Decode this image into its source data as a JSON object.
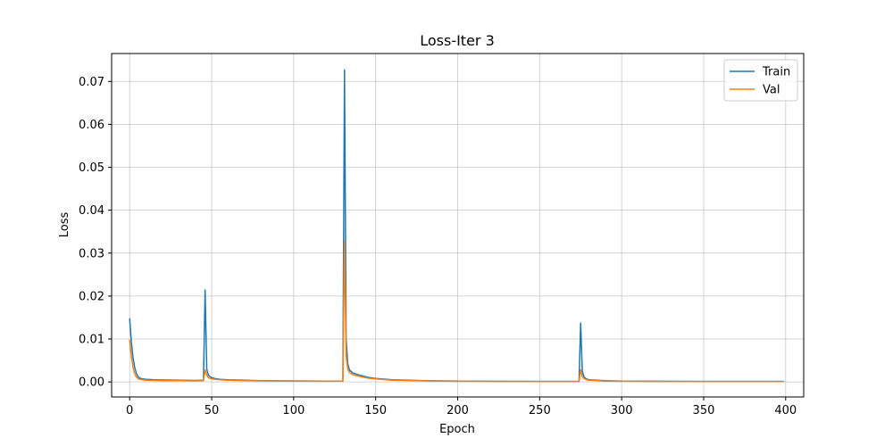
{
  "chart_data": {
    "type": "line",
    "title": "Loss-Iter 3",
    "xlabel": "Epoch",
    "ylabel": "Loss",
    "xlim": [
      -11,
      411
    ],
    "ylim": [
      -0.0035,
      0.0765
    ],
    "xticks": [
      0,
      50,
      100,
      150,
      200,
      250,
      300,
      350,
      400
    ],
    "yticks": [
      0.0,
      0.01,
      0.02,
      0.03,
      0.04,
      0.05,
      0.06,
      0.07
    ],
    "xtick_labels": [
      "0",
      "50",
      "100",
      "150",
      "200",
      "250",
      "300",
      "350",
      "400"
    ],
    "ytick_labels": [
      "0.00",
      "0.01",
      "0.02",
      "0.03",
      "0.04",
      "0.05",
      "0.06",
      "0.07"
    ],
    "grid": true,
    "legend_position": "top-right",
    "series": [
      {
        "name": "Train",
        "color": "#1f77b4",
        "x": [
          0,
          1,
          2,
          3,
          4,
          5,
          6,
          8,
          10,
          15,
          20,
          30,
          40,
          45,
          46,
          47,
          48,
          49,
          50,
          52,
          55,
          60,
          70,
          80,
          100,
          120,
          130,
          131,
          132,
          133,
          134,
          136,
          140,
          145,
          150,
          160,
          180,
          200,
          250,
          274,
          275,
          276,
          277,
          278,
          280,
          290,
          300,
          350,
          399
        ],
        "y": [
          0.0148,
          0.0095,
          0.0058,
          0.0035,
          0.0021,
          0.0013,
          0.0009,
          0.0007,
          0.0006,
          0.0005,
          0.00045,
          0.0004,
          0.00035,
          0.0004,
          0.0214,
          0.003,
          0.0016,
          0.0012,
          0.001,
          0.0008,
          0.0006,
          0.0005,
          0.0004,
          0.0003,
          0.00025,
          0.0002,
          0.0002,
          0.0727,
          0.01,
          0.0042,
          0.0028,
          0.0021,
          0.0016,
          0.0011,
          0.0008,
          0.0005,
          0.0003,
          0.0002,
          0.0001,
          0.0001,
          0.0137,
          0.0025,
          0.0012,
          0.0008,
          0.0005,
          0.0003,
          0.0002,
          0.0001,
          0.0001
        ]
      },
      {
        "name": "Val",
        "color": "#ff7f0e",
        "x": [
          0,
          1,
          2,
          3,
          4,
          5,
          6,
          8,
          10,
          15,
          20,
          30,
          40,
          45,
          46,
          47,
          48,
          49,
          50,
          52,
          55,
          60,
          70,
          80,
          100,
          120,
          130,
          131,
          132,
          133,
          134,
          136,
          140,
          145,
          150,
          160,
          180,
          200,
          250,
          274,
          275,
          276,
          277,
          278,
          280,
          290,
          300,
          350,
          399
        ],
        "y": [
          0.0098,
          0.006,
          0.0035,
          0.002,
          0.0012,
          0.0008,
          0.0006,
          0.0005,
          0.0004,
          0.00035,
          0.0003,
          0.0003,
          0.00025,
          0.0003,
          0.0028,
          0.0016,
          0.001,
          0.0008,
          0.0007,
          0.0006,
          0.0005,
          0.0004,
          0.0003,
          0.00025,
          0.0002,
          0.00015,
          0.00015,
          0.0328,
          0.006,
          0.003,
          0.0022,
          0.0017,
          0.0013,
          0.0009,
          0.0007,
          0.0004,
          0.00025,
          0.00015,
          0.0001,
          0.0001,
          0.0028,
          0.0012,
          0.0008,
          0.0006,
          0.0004,
          0.0002,
          0.00015,
          0.0001,
          0.0001
        ]
      }
    ]
  }
}
